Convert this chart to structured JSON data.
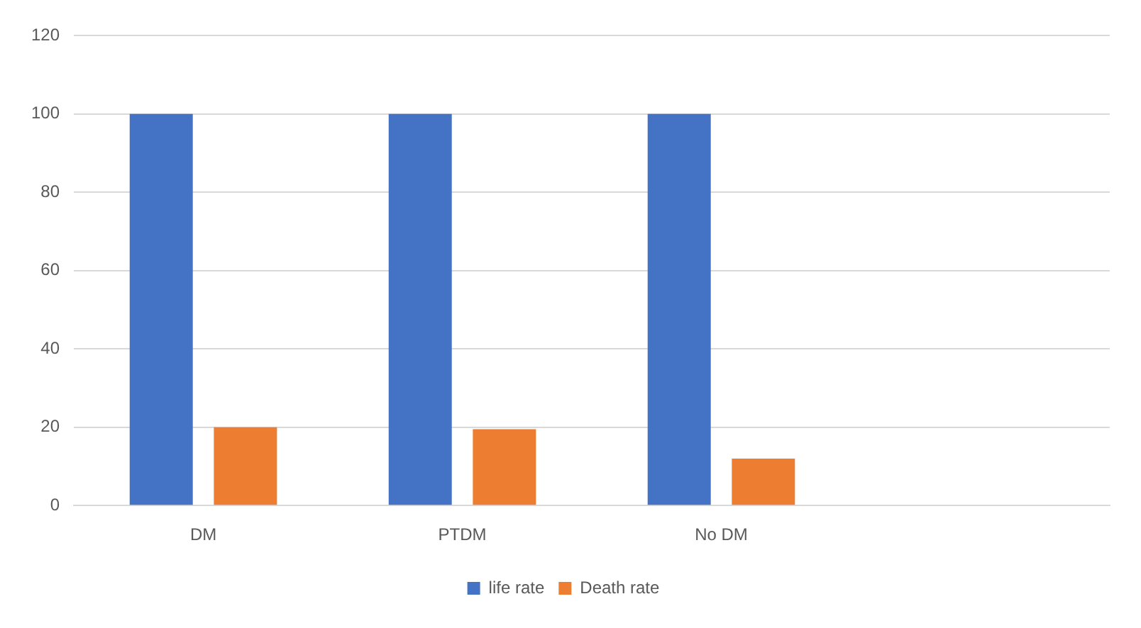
{
  "chart_data": {
    "type": "bar",
    "categories": [
      "DM",
      "PTDM",
      "No DM",
      null
    ],
    "series": [
      {
        "name": "life rate",
        "color": "#4472c4",
        "values": [
          100,
          100,
          100,
          null
        ]
      },
      {
        "name": "Death rate",
        "color": "#ed7d31",
        "values": [
          20,
          19.5,
          12,
          null
        ]
      }
    ],
    "ylim": [
      0,
      120
    ],
    "yticks": [
      0,
      20,
      40,
      60,
      80,
      100,
      120
    ],
    "grid": "y",
    "legend": "bottom"
  }
}
